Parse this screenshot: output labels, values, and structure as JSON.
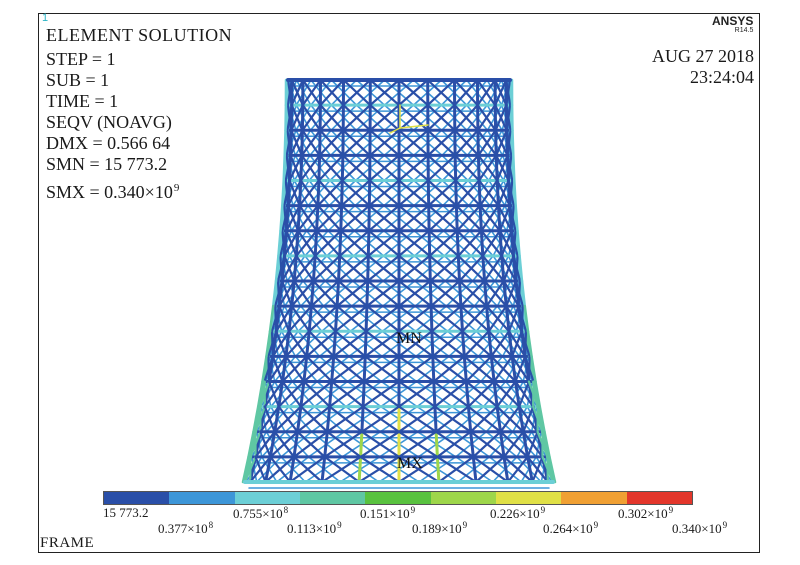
{
  "window_number": "1",
  "brand": {
    "name": "ANSYS",
    "version": "R14.5"
  },
  "info": {
    "title": "ELEMENT  SOLUTION",
    "step": "STEP = 1",
    "sub": "SUB = 1",
    "time": "TIME = 1",
    "result": "SEQV  (NOAVG)",
    "dmx": "DMX = 0.566 64",
    "smn": "SMN = 15 773.2",
    "smx_prefix": "SMX = 0.340×10",
    "smx_exp": "9"
  },
  "datetime": {
    "date": "AUG 27 2018",
    "time": "23:24:04"
  },
  "markers": {
    "min": "MN",
    "max": "MX"
  },
  "legend": {
    "colors": [
      "#2a4fa8",
      "#3d96d8",
      "#6ccfd6",
      "#5fc7a3",
      "#59c23f",
      "#9ed64a",
      "#e0e046",
      "#f0a033",
      "#e3362b"
    ],
    "labels_top": [
      {
        "mant": "15 773.2",
        "exp": ""
      },
      {
        "mant": "0.755×10",
        "exp": "8"
      },
      {
        "mant": "0.151×10",
        "exp": "9"
      },
      {
        "mant": "0.226×10",
        "exp": "9"
      },
      {
        "mant": "0.302×10",
        "exp": "9"
      }
    ],
    "labels_bottom": [
      {
        "mant": "0.377×10",
        "exp": "8"
      },
      {
        "mant": "0.113×10",
        "exp": "9"
      },
      {
        "mant": "0.189×10",
        "exp": "9"
      },
      {
        "mant": "0.264×10",
        "exp": "9"
      },
      {
        "mant": "0.340×10",
        "exp": "9"
      }
    ]
  },
  "frame_label": "FRAME"
}
